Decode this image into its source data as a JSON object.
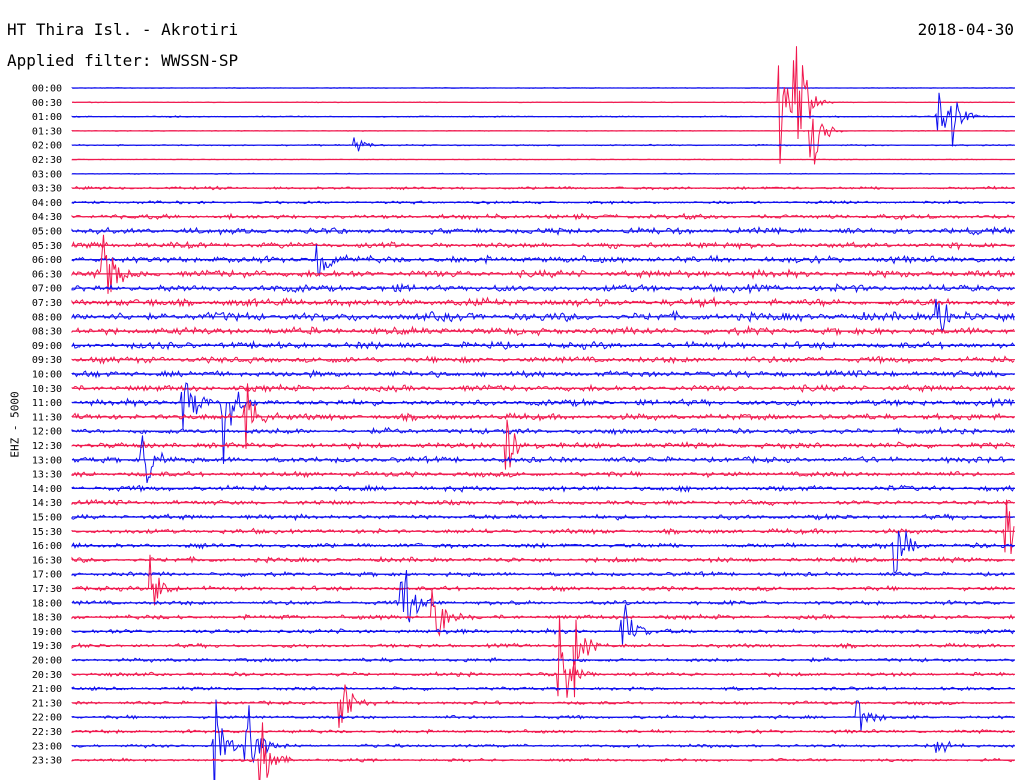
{
  "header": {
    "station": "HT Thira Isl. - Akrotiri",
    "date": "2018-04-30",
    "filter": "Applied filter: WWSSN-SP"
  },
  "chart_data": {
    "type": "line",
    "title": "HT Thira Isl. - Akrotiri",
    "ylabel": "EHZ - 5000",
    "x_range_minutes": [
      0,
      30
    ],
    "grid": false,
    "colors": [
      "#1010ee",
      "#f0184e"
    ],
    "rows": [
      "00:00",
      "00:30",
      "01:00",
      "01:30",
      "02:00",
      "02:30",
      "03:00",
      "03:30",
      "04:00",
      "04:30",
      "05:00",
      "05:30",
      "06:00",
      "06:30",
      "07:00",
      "07:30",
      "08:00",
      "08:30",
      "09:00",
      "09:30",
      "10:00",
      "10:30",
      "11:00",
      "11:30",
      "12:00",
      "12:30",
      "13:00",
      "13:30",
      "14:00",
      "14:30",
      "15:00",
      "15:30",
      "16:00",
      "16:30",
      "17:00",
      "17:30",
      "18:00",
      "18:30",
      "19:00",
      "19:30",
      "20:00",
      "20:30",
      "21:00",
      "21:30",
      "22:00",
      "22:30",
      "23:00",
      "23:30"
    ],
    "noise_level": [
      0.3,
      0.3,
      0.5,
      0.3,
      0.6,
      0.3,
      0.4,
      1.2,
      1.2,
      2.0,
      2.5,
      2.5,
      2.8,
      3.0,
      3.0,
      3.2,
      3.5,
      3.0,
      2.8,
      2.6,
      2.6,
      2.6,
      2.6,
      2.6,
      2.4,
      2.4,
      2.4,
      2.2,
      2.2,
      2.0,
      2.0,
      2.0,
      2.0,
      2.0,
      1.8,
      1.8,
      1.8,
      1.8,
      1.8,
      1.6,
      1.6,
      1.6,
      1.4,
      1.4,
      1.4,
      1.4,
      1.4,
      1.2
    ],
    "events": [
      {
        "row": 1,
        "minute": 22.5,
        "amplitude": 60
      },
      {
        "row": 1,
        "minute": 23.0,
        "amplitude": 80
      },
      {
        "row": 3,
        "minute": 23.5,
        "amplitude": 50
      },
      {
        "row": 4,
        "minute": 9.0,
        "amplitude": 14
      },
      {
        "row": 2,
        "minute": 27.5,
        "amplitude": 25
      },
      {
        "row": 2,
        "minute": 28.0,
        "amplitude": 30
      },
      {
        "row": 12,
        "minute": 7.8,
        "amplitude": 30
      },
      {
        "row": 13,
        "minute": 1.0,
        "amplitude": 40
      },
      {
        "row": 16,
        "minute": 27.5,
        "amplitude": 35
      },
      {
        "row": 22,
        "minute": 3.5,
        "amplitude": 55
      },
      {
        "row": 22,
        "minute": 4.8,
        "amplitude": 60
      },
      {
        "row": 23,
        "minute": 5.5,
        "amplitude": 50
      },
      {
        "row": 25,
        "minute": 13.8,
        "amplitude": 40
      },
      {
        "row": 26,
        "minute": 2.2,
        "amplitude": 45
      },
      {
        "row": 31,
        "minute": 29.7,
        "amplitude": 40
      },
      {
        "row": 32,
        "minute": 26.2,
        "amplitude": 35
      },
      {
        "row": 35,
        "minute": 2.5,
        "amplitude": 40
      },
      {
        "row": 36,
        "minute": 10.5,
        "amplitude": 45
      },
      {
        "row": 37,
        "minute": 11.5,
        "amplitude": 40
      },
      {
        "row": 38,
        "minute": 17.5,
        "amplitude": 45
      },
      {
        "row": 39,
        "minute": 16.0,
        "amplitude": 40
      },
      {
        "row": 41,
        "minute": 15.5,
        "amplitude": 55
      },
      {
        "row": 43,
        "minute": 8.5,
        "amplitude": 45
      },
      {
        "row": 44,
        "minute": 25.0,
        "amplitude": 30
      },
      {
        "row": 46,
        "minute": 4.5,
        "amplitude": 50
      },
      {
        "row": 46,
        "minute": 5.5,
        "amplitude": 60
      },
      {
        "row": 46,
        "minute": 27.5,
        "amplitude": 15
      },
      {
        "row": 47,
        "minute": 6.0,
        "amplitude": 55
      }
    ]
  }
}
